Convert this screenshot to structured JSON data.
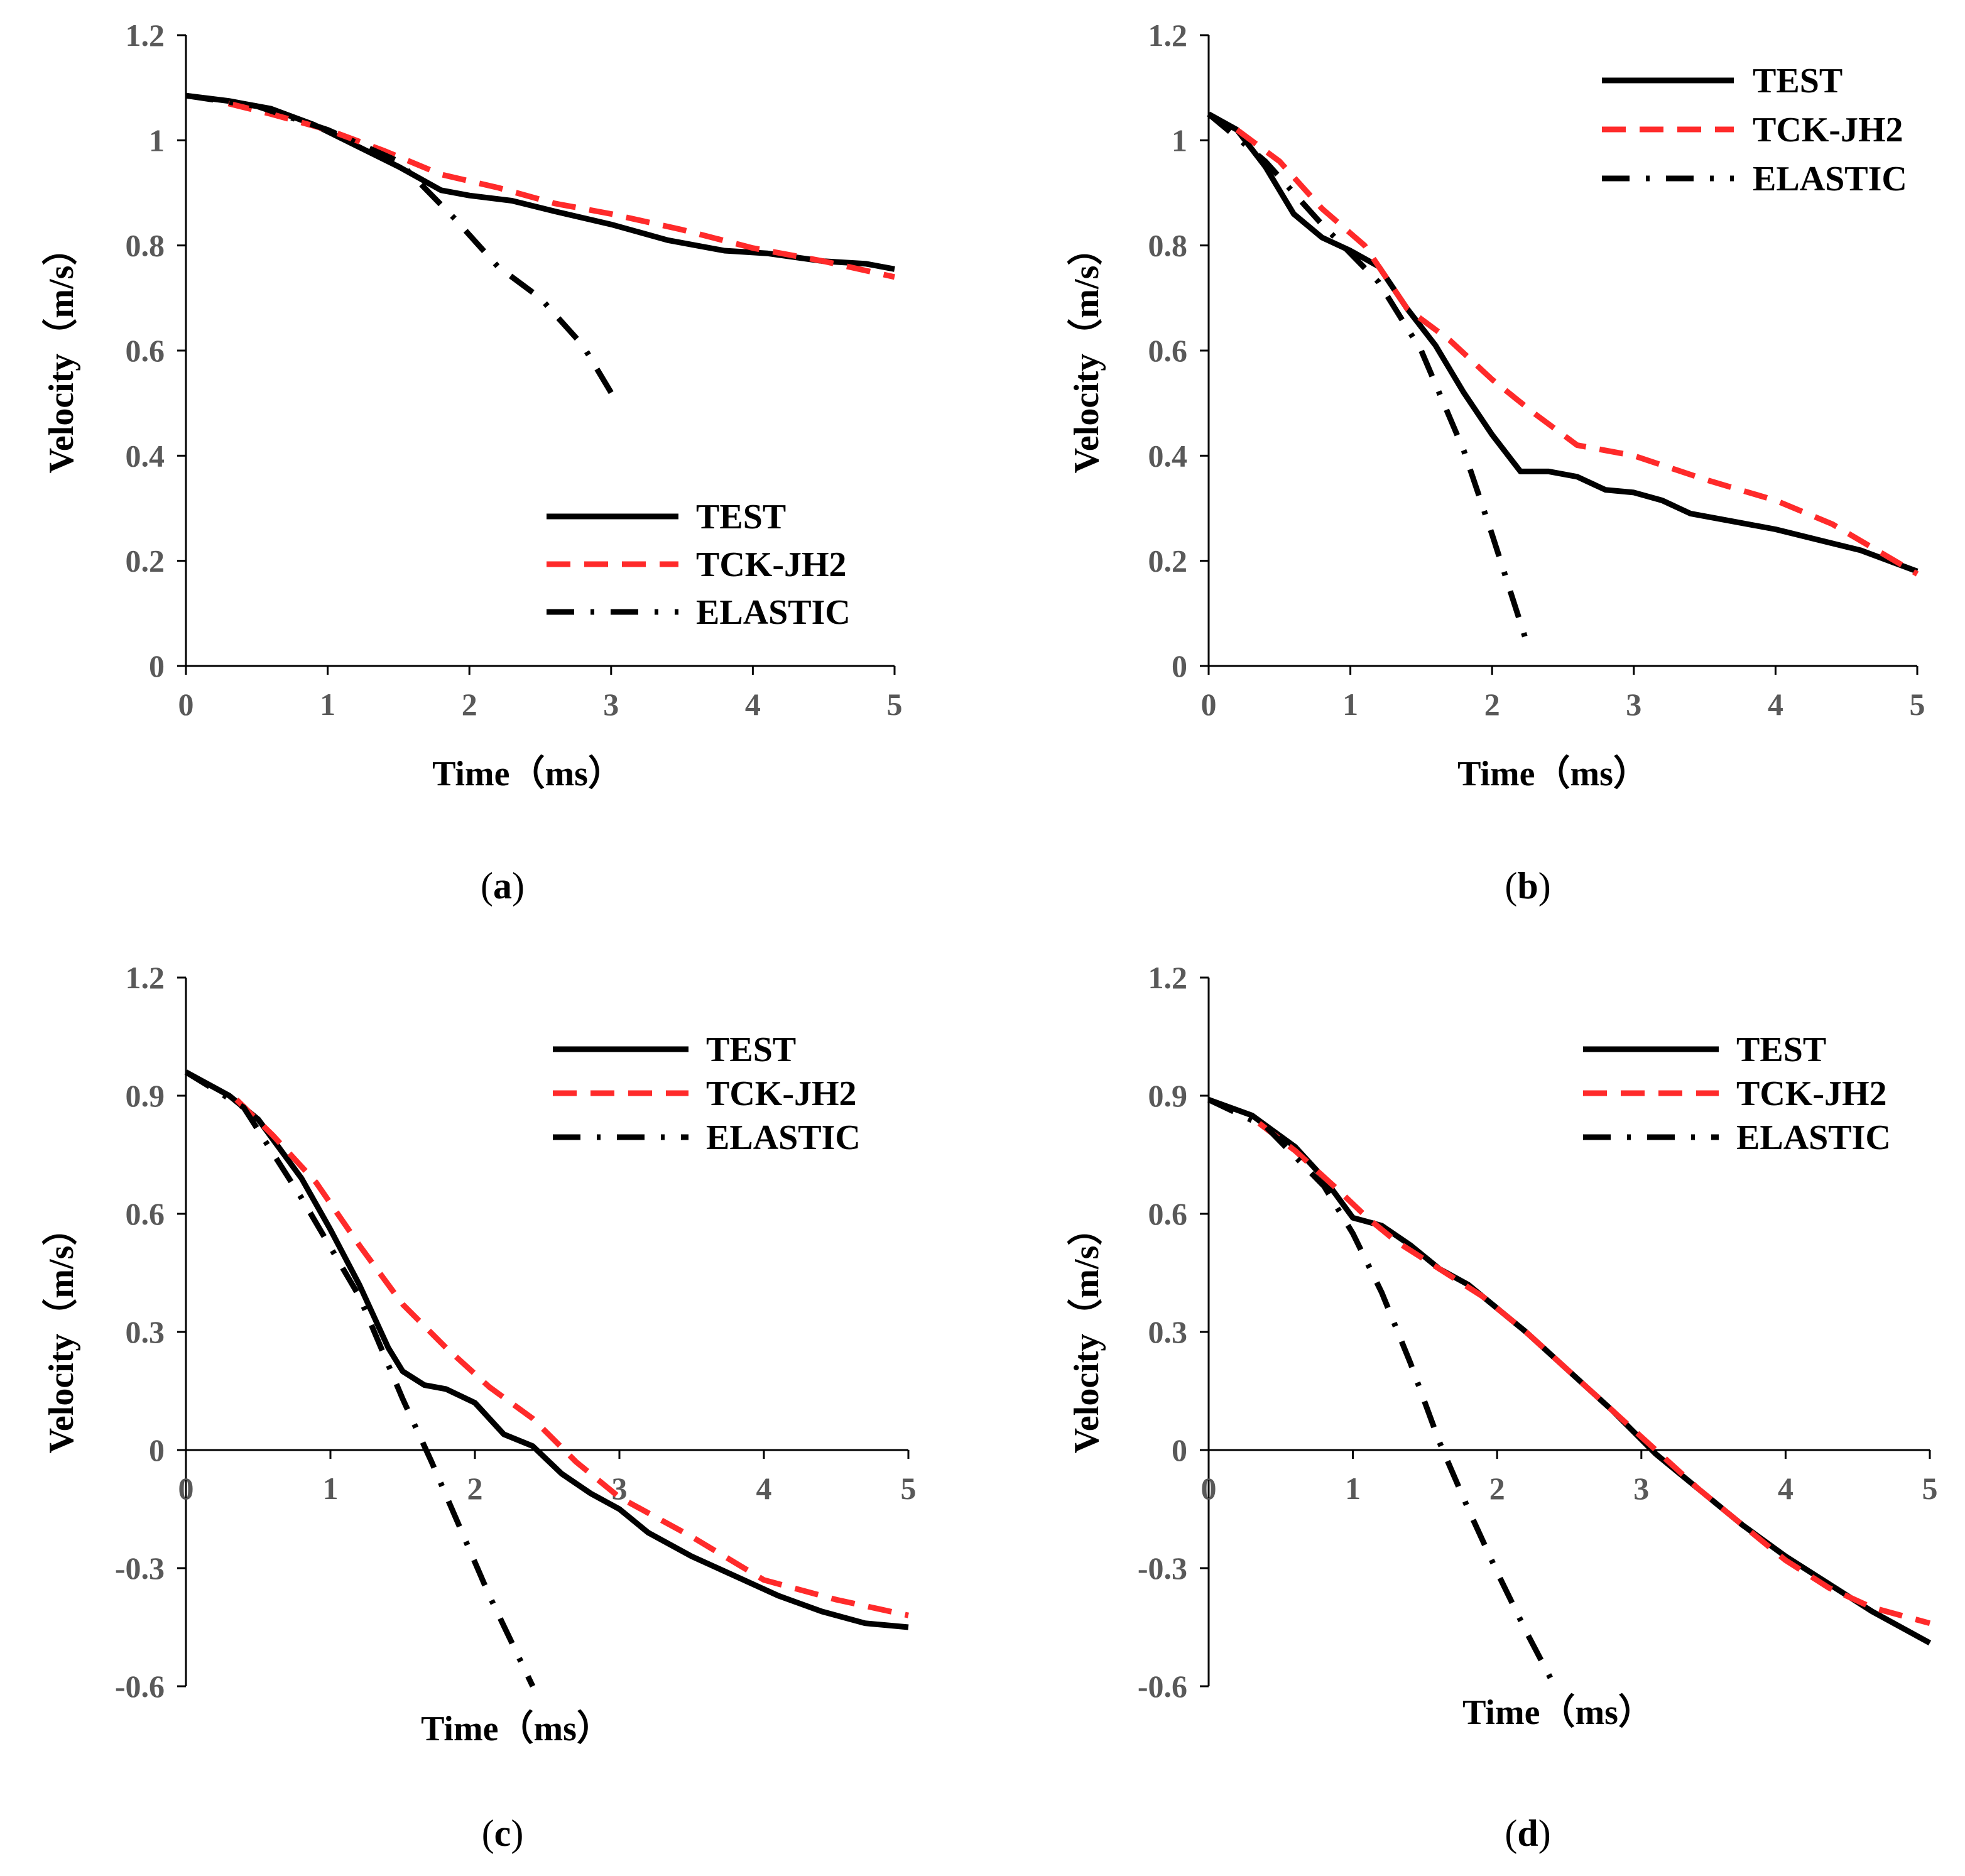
{
  "colors": {
    "test": "#000000",
    "tck": "#ff2a2a",
    "elastic": "#000000"
  },
  "chart_data": [
    {
      "type": "line",
      "panel": "a",
      "caption": "(a)",
      "caption_letter": "a",
      "xlabel": "Time（ms）",
      "ylabel": "Velocity（m/s）",
      "xlim": [
        0,
        5
      ],
      "ylim": [
        0,
        1.2
      ],
      "xticks": [
        0,
        1,
        2,
        3,
        4,
        5
      ],
      "yticks": [
        0,
        0.2,
        0.4,
        0.6,
        0.8,
        1,
        1.2
      ],
      "ytick_labels": [
        "0",
        "0.2",
        "0.4",
        "0.6",
        "0.8",
        "1",
        "1.2"
      ],
      "legend_position": "bottom-right",
      "series": [
        {
          "name": "TEST",
          "style": "solid",
          "x": [
            0,
            0.3,
            0.6,
            0.9,
            1.2,
            1.5,
            1.8,
            2.0,
            2.3,
            2.6,
            3.0,
            3.4,
            3.8,
            4.1,
            4.5,
            4.8,
            5.0
          ],
          "y": [
            1.085,
            1.075,
            1.06,
            1.03,
            0.99,
            0.95,
            0.905,
            0.895,
            0.885,
            0.865,
            0.84,
            0.81,
            0.79,
            0.785,
            0.77,
            0.765,
            0.755
          ]
        },
        {
          "name": "TCK-JH2",
          "style": "dashed",
          "x": [
            0.3,
            0.6,
            1.0,
            1.4,
            1.8,
            2.2,
            2.6,
            3.0,
            3.5,
            4.0,
            4.5,
            5.0
          ],
          "y": [
            1.07,
            1.05,
            1.02,
            0.98,
            0.935,
            0.91,
            0.88,
            0.86,
            0.83,
            0.795,
            0.77,
            0.74
          ]
        },
        {
          "name": "ELASTIC",
          "style": "dashdot",
          "x": [
            0,
            0.5,
            1.0,
            1.5,
            1.9,
            2.2,
            2.5,
            2.8,
            3.0
          ],
          "y": [
            1.085,
            1.065,
            1.02,
            0.96,
            0.85,
            0.76,
            0.7,
            0.61,
            0.52
          ]
        }
      ]
    },
    {
      "type": "line",
      "panel": "b",
      "caption": "(b)",
      "caption_letter": "b",
      "xlabel": "Time（ms）",
      "ylabel": "Velocity（m/s）",
      "xlim": [
        0,
        5
      ],
      "ylim": [
        0,
        1.2
      ],
      "xticks": [
        0,
        1,
        2,
        3,
        4,
        5
      ],
      "yticks": [
        0,
        0.2,
        0.4,
        0.6,
        0.8,
        1,
        1.2
      ],
      "ytick_labels": [
        "0",
        "0.2",
        "0.4",
        "0.6",
        "0.8",
        "1",
        "1.2"
      ],
      "legend_position": "top-right",
      "series": [
        {
          "name": "TEST",
          "style": "solid",
          "x": [
            0,
            0.2,
            0.4,
            0.6,
            0.8,
            1.0,
            1.2,
            1.4,
            1.6,
            1.8,
            2.0,
            2.2,
            2.4,
            2.6,
            2.8,
            3.0,
            3.2,
            3.4,
            3.7,
            4.0,
            4.3,
            4.6,
            5.0
          ],
          "y": [
            1.05,
            1.02,
            0.95,
            0.86,
            0.815,
            0.79,
            0.76,
            0.68,
            0.61,
            0.52,
            0.44,
            0.37,
            0.37,
            0.36,
            0.335,
            0.33,
            0.315,
            0.29,
            0.275,
            0.26,
            0.24,
            0.22,
            0.18
          ]
        },
        {
          "name": "TCK-JH2",
          "style": "dashed",
          "x": [
            0.2,
            0.5,
            0.8,
            1.1,
            1.4,
            1.7,
            2.0,
            2.3,
            2.6,
            3.0,
            3.5,
            4.0,
            4.4,
            5.0
          ],
          "y": [
            1.02,
            0.96,
            0.87,
            0.8,
            0.68,
            0.62,
            0.545,
            0.48,
            0.42,
            0.4,
            0.355,
            0.315,
            0.27,
            0.175
          ]
        },
        {
          "name": "ELASTIC",
          "style": "dashdot",
          "x": [
            0,
            0.4,
            0.8,
            1.2,
            1.5,
            1.8,
            2.0,
            2.25
          ],
          "y": [
            1.05,
            0.96,
            0.84,
            0.73,
            0.6,
            0.41,
            0.25,
            0.04
          ]
        }
      ]
    },
    {
      "type": "line",
      "panel": "c",
      "caption": "(c)",
      "caption_letter": "c",
      "xlabel": "Time（ms）",
      "ylabel": "Velocity（m/s）",
      "xlim": [
        0,
        5
      ],
      "ylim": [
        -0.6,
        1.2
      ],
      "xticks": [
        0,
        1,
        2,
        3,
        4,
        5
      ],
      "yticks": [
        -0.6,
        -0.3,
        0,
        0.3,
        0.6,
        0.9,
        1.2
      ],
      "ytick_labels": [
        "-0.6",
        "-0.3",
        "0",
        "0.3",
        "0.6",
        "0.9",
        "1.2"
      ],
      "legend_position": "top-right",
      "series": [
        {
          "name": "TEST",
          "style": "solid",
          "x": [
            0,
            0.3,
            0.5,
            0.8,
            1.0,
            1.2,
            1.4,
            1.5,
            1.65,
            1.8,
            2.0,
            2.2,
            2.4,
            2.6,
            2.8,
            3.0,
            3.2,
            3.5,
            3.8,
            4.1,
            4.4,
            4.7,
            5.0
          ],
          "y": [
            0.96,
            0.9,
            0.84,
            0.69,
            0.56,
            0.42,
            0.26,
            0.2,
            0.165,
            0.155,
            0.12,
            0.04,
            0.01,
            -0.06,
            -0.11,
            -0.15,
            -0.21,
            -0.27,
            -0.32,
            -0.37,
            -0.41,
            -0.44,
            -0.45
          ]
        },
        {
          "name": "TCK-JH2",
          "style": "dashed",
          "x": [
            0.35,
            0.6,
            0.9,
            1.2,
            1.5,
            1.8,
            2.1,
            2.4,
            2.7,
            3.0,
            3.5,
            4.0,
            4.5,
            5.0
          ],
          "y": [
            0.89,
            0.8,
            0.68,
            0.52,
            0.37,
            0.26,
            0.16,
            0.08,
            -0.03,
            -0.12,
            -0.22,
            -0.33,
            -0.38,
            -0.42
          ]
        },
        {
          "name": "ELASTIC",
          "style": "dashdot",
          "x": [
            0,
            0.4,
            0.8,
            1.2,
            1.5,
            1.7,
            1.9,
            2.1,
            2.4
          ],
          "y": [
            0.96,
            0.87,
            0.64,
            0.39,
            0.13,
            -0.03,
            -0.2,
            -0.37,
            -0.6
          ]
        }
      ]
    },
    {
      "type": "line",
      "panel": "d",
      "caption": "(d)",
      "caption_letter": "d",
      "xlabel": "Time（ms）",
      "ylabel": "Velocity（m/s）",
      "xlim": [
        0,
        5
      ],
      "ylim": [
        -0.6,
        1.2
      ],
      "xticks": [
        0,
        1,
        2,
        3,
        4,
        5
      ],
      "yticks": [
        -0.6,
        -0.3,
        0,
        0.3,
        0.6,
        0.9,
        1.2
      ],
      "ytick_labels": [
        "-0.6",
        "-0.3",
        "0",
        "0.3",
        "0.6",
        "0.9",
        "1.2"
      ],
      "legend_position": "top-right",
      "series": [
        {
          "name": "TEST",
          "style": "solid",
          "x": [
            0,
            0.3,
            0.6,
            0.8,
            1.0,
            1.2,
            1.4,
            1.6,
            1.8,
            2.0,
            2.2,
            2.5,
            2.8,
            3.1,
            3.4,
            3.7,
            4.0,
            4.3,
            4.6,
            5.0
          ],
          "y": [
            0.89,
            0.85,
            0.77,
            0.69,
            0.59,
            0.57,
            0.52,
            0.46,
            0.42,
            0.36,
            0.3,
            0.2,
            0.1,
            -0.01,
            -0.1,
            -0.19,
            -0.27,
            -0.34,
            -0.41,
            -0.49
          ]
        },
        {
          "name": "TCK-JH2",
          "style": "dashed",
          "x": [
            0.35,
            0.6,
            0.9,
            1.1,
            1.3,
            1.6,
            1.9,
            2.2,
            2.5,
            2.8,
            3.1,
            3.4,
            3.7,
            4.0,
            4.3,
            4.6,
            5.0
          ],
          "y": [
            0.83,
            0.76,
            0.66,
            0.59,
            0.53,
            0.46,
            0.39,
            0.3,
            0.2,
            0.1,
            0.0,
            -0.1,
            -0.19,
            -0.28,
            -0.35,
            -0.4,
            -0.44
          ]
        },
        {
          "name": "ELASTIC",
          "style": "dashdot",
          "x": [
            0,
            0.4,
            0.8,
            1.0,
            1.2,
            1.4,
            1.6,
            1.8,
            2.0,
            2.2,
            2.4
          ],
          "y": [
            0.89,
            0.82,
            0.67,
            0.55,
            0.4,
            0.22,
            0.02,
            -0.15,
            -0.31,
            -0.46,
            -0.6
          ]
        }
      ]
    }
  ]
}
